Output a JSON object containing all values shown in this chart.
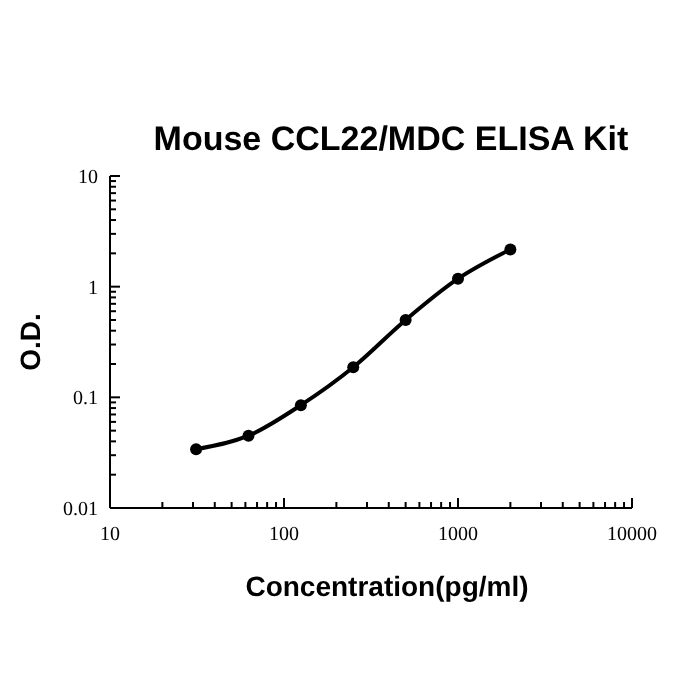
{
  "chart_data": {
    "type": "line",
    "title": "Mouse CCL22/MDC ELISA Kit",
    "xlabel": "Concentration(pg/ml)",
    "ylabel": "O.D.",
    "x": [
      31.25,
      62.5,
      125,
      250,
      500,
      1000,
      2000
    ],
    "series": [
      {
        "color": "#000000",
        "values": [
          0.034,
          0.045,
          0.085,
          0.187,
          0.5,
          1.18,
          2.17
        ]
      }
    ],
    "log": "xy",
    "xlim": [
      10,
      10000
    ],
    "xticks": [
      10,
      100,
      1000,
      10000
    ],
    "ylim": [
      0.01,
      10
    ],
    "yticks": [
      0.01,
      0.1,
      1,
      10
    ],
    "marker": "circle",
    "line_style": "solid"
  }
}
